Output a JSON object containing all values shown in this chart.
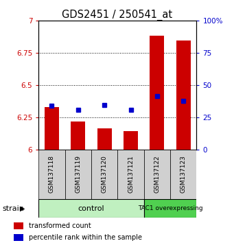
{
  "title": "GDS2451 / 250541_at",
  "samples": [
    "GSM137118",
    "GSM137119",
    "GSM137120",
    "GSM137121",
    "GSM137122",
    "GSM137123"
  ],
  "red_values": [
    6.33,
    6.215,
    6.165,
    6.14,
    6.885,
    6.845
  ],
  "blue_values": [
    6.34,
    6.31,
    6.345,
    6.305,
    6.415,
    6.375
  ],
  "ylim_left": [
    6.0,
    7.0
  ],
  "ylim_right": [
    0,
    100
  ],
  "yticks_left": [
    6.0,
    6.25,
    6.5,
    6.75,
    7.0
  ],
  "yticks_right": [
    0,
    25,
    50,
    75,
    100
  ],
  "ytick_labels_left": [
    "6",
    "6.25",
    "6.5",
    "6.75",
    "7"
  ],
  "ytick_labels_right": [
    "0",
    "25",
    "50",
    "75",
    "100%"
  ],
  "left_color": "#cc0000",
  "right_color": "#0000cc",
  "bar_width": 0.55,
  "blue_marker_size": 5,
  "ctrl_color": "#c0f0c0",
  "tac1_color": "#50d050",
  "sample_box_color": "#d0d0d0",
  "legend": [
    {
      "label": "transformed count",
      "color": "#cc0000"
    },
    {
      "label": "percentile rank within the sample",
      "color": "#0000cc"
    }
  ]
}
